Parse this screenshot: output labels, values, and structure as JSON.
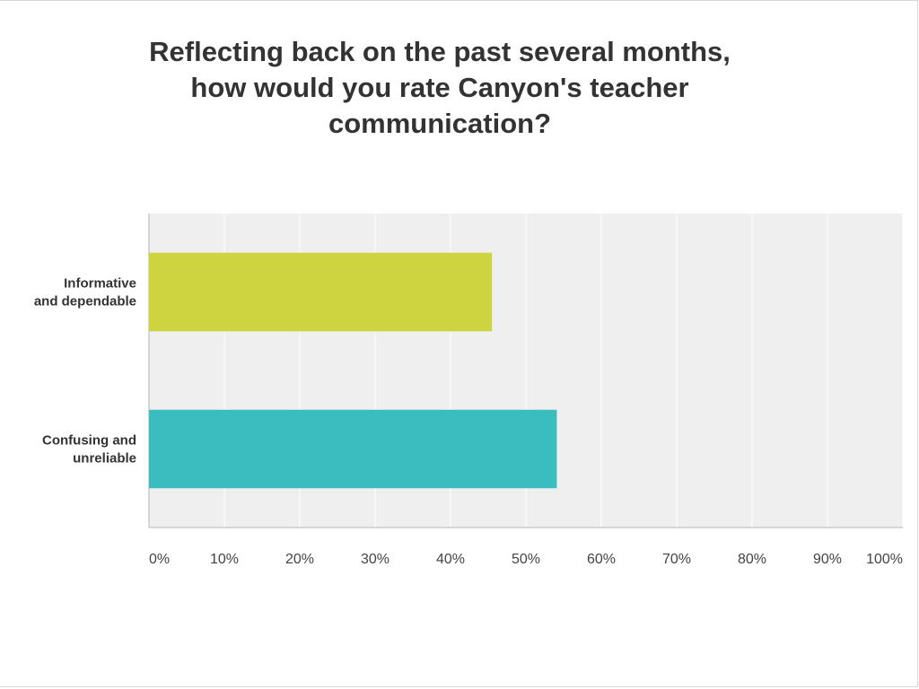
{
  "chart_data": {
    "type": "bar",
    "orientation": "horizontal",
    "title_lines": [
      "Reflecting back on the past several months,",
      "how would you rate Canyon's teacher",
      "communication?"
    ],
    "categories": [
      [
        "Informative",
        "and dependable"
      ],
      [
        "Confusing and",
        "unreliable"
      ]
    ],
    "values": [
      45.5,
      54.1
    ],
    "colors": [
      "#cdd43f",
      "#3bbdbf"
    ],
    "xlim": [
      0,
      100
    ],
    "ticks": [
      "0%",
      "10%",
      "20%",
      "30%",
      "40%",
      "50%",
      "60%",
      "70%",
      "80%",
      "90%",
      "100%"
    ],
    "grid": true,
    "plot_background": "#efefef",
    "grid_color": "#ffffff"
  }
}
